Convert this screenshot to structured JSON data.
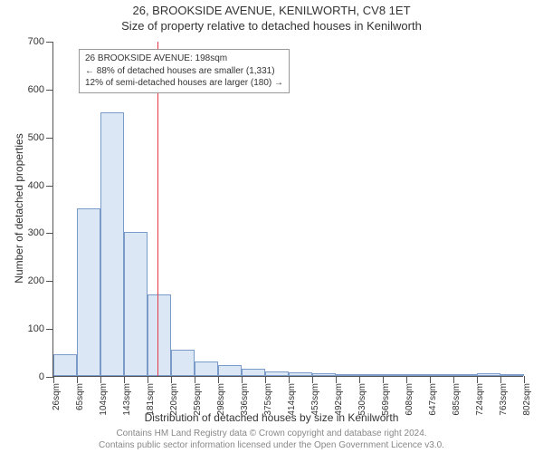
{
  "header": {
    "address": "26, BROOKSIDE AVENUE, KENILWORTH, CV8 1ET",
    "subtitle": "Size of property relative to detached houses in Kenilworth"
  },
  "chart": {
    "type": "histogram",
    "ylabel": "Number of detached properties",
    "xlabel": "Distribution of detached houses by size in Kenilworth",
    "ylim": [
      0,
      700
    ],
    "yticks": [
      0,
      100,
      200,
      300,
      400,
      500,
      600,
      700
    ],
    "xticks": [
      "26sqm",
      "65sqm",
      "104sqm",
      "143sqm",
      "181sqm",
      "220sqm",
      "259sqm",
      "298sqm",
      "336sqm",
      "375sqm",
      "414sqm",
      "453sqm",
      "492sqm",
      "530sqm",
      "569sqm",
      "608sqm",
      "647sqm",
      "685sqm",
      "724sqm",
      "763sqm",
      "802sqm"
    ],
    "bar_values": [
      45,
      350,
      550,
      300,
      170,
      55,
      30,
      22,
      15,
      10,
      8,
      5,
      4,
      4,
      3,
      3,
      2,
      2,
      5,
      2
    ],
    "bar_fill": "#dce7f5",
    "bar_border": "#7a9ac9",
    "axis_color": "#555555",
    "plot_bg": "#ffffff",
    "refline": {
      "value_sqm": 198,
      "color": "#e63946"
    },
    "annotation": {
      "line1": "26 BROOKSIDE AVENUE: 198sqm",
      "line2": "← 88% of detached houses are smaller (1,331)",
      "line3": "12% of semi-detached houses are larger (180) →",
      "border": "#999999",
      "bg": "#ffffff"
    }
  },
  "footer": {
    "line1": "Contains HM Land Registry data © Crown copyright and database right 2024.",
    "line2": "Contains public sector information licensed under the Open Government Licence v3.0."
  }
}
